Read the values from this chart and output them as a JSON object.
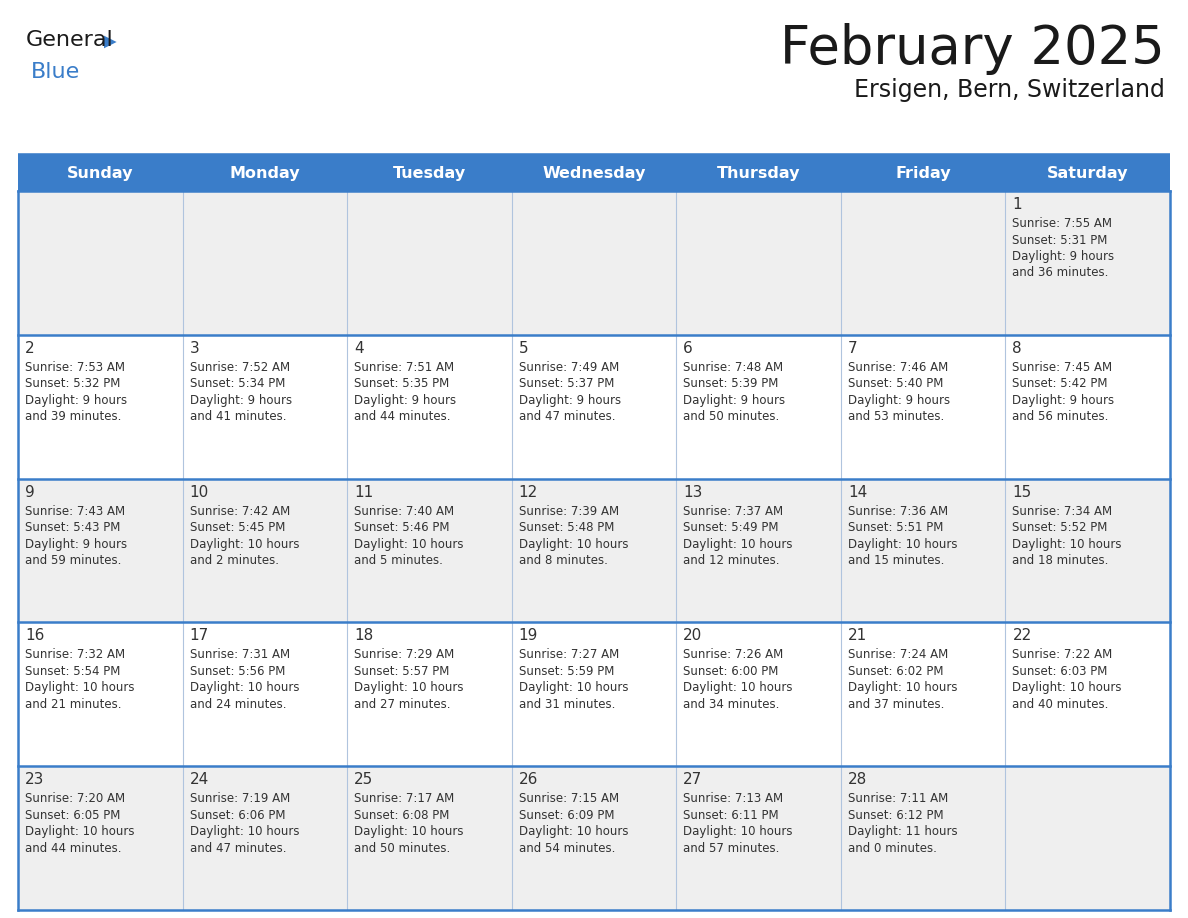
{
  "title": "February 2025",
  "subtitle": "Ersigen, Bern, Switzerland",
  "days_of_week": [
    "Sunday",
    "Monday",
    "Tuesday",
    "Wednesday",
    "Thursday",
    "Friday",
    "Saturday"
  ],
  "header_bg": "#3A7DC9",
  "header_text": "#FFFFFF",
  "cell_bg_odd": "#EFEFEF",
  "cell_bg_even": "#FFFFFF",
  "border_color": "#3A7DC9",
  "day_number_color": "#333333",
  "text_color": "#333333",
  "title_color": "#1a1a1a",
  "logo_general_color": "#1a1a1a",
  "logo_blue_color": "#3A7DC9",
  "calendar_data": [
    [
      null,
      null,
      null,
      null,
      null,
      null,
      {
        "day": "1",
        "sunrise": "7:55 AM",
        "sunset": "5:31 PM",
        "daylight_line1": "Daylight: 9 hours",
        "daylight_line2": "and 36 minutes."
      }
    ],
    [
      {
        "day": "2",
        "sunrise": "7:53 AM",
        "sunset": "5:32 PM",
        "daylight_line1": "Daylight: 9 hours",
        "daylight_line2": "and 39 minutes."
      },
      {
        "day": "3",
        "sunrise": "7:52 AM",
        "sunset": "5:34 PM",
        "daylight_line1": "Daylight: 9 hours",
        "daylight_line2": "and 41 minutes."
      },
      {
        "day": "4",
        "sunrise": "7:51 AM",
        "sunset": "5:35 PM",
        "daylight_line1": "Daylight: 9 hours",
        "daylight_line2": "and 44 minutes."
      },
      {
        "day": "5",
        "sunrise": "7:49 AM",
        "sunset": "5:37 PM",
        "daylight_line1": "Daylight: 9 hours",
        "daylight_line2": "and 47 minutes."
      },
      {
        "day": "6",
        "sunrise": "7:48 AM",
        "sunset": "5:39 PM",
        "daylight_line1": "Daylight: 9 hours",
        "daylight_line2": "and 50 minutes."
      },
      {
        "day": "7",
        "sunrise": "7:46 AM",
        "sunset": "5:40 PM",
        "daylight_line1": "Daylight: 9 hours",
        "daylight_line2": "and 53 minutes."
      },
      {
        "day": "8",
        "sunrise": "7:45 AM",
        "sunset": "5:42 PM",
        "daylight_line1": "Daylight: 9 hours",
        "daylight_line2": "and 56 minutes."
      }
    ],
    [
      {
        "day": "9",
        "sunrise": "7:43 AM",
        "sunset": "5:43 PM",
        "daylight_line1": "Daylight: 9 hours",
        "daylight_line2": "and 59 minutes."
      },
      {
        "day": "10",
        "sunrise": "7:42 AM",
        "sunset": "5:45 PM",
        "daylight_line1": "Daylight: 10 hours",
        "daylight_line2": "and 2 minutes."
      },
      {
        "day": "11",
        "sunrise": "7:40 AM",
        "sunset": "5:46 PM",
        "daylight_line1": "Daylight: 10 hours",
        "daylight_line2": "and 5 minutes."
      },
      {
        "day": "12",
        "sunrise": "7:39 AM",
        "sunset": "5:48 PM",
        "daylight_line1": "Daylight: 10 hours",
        "daylight_line2": "and 8 minutes."
      },
      {
        "day": "13",
        "sunrise": "7:37 AM",
        "sunset": "5:49 PM",
        "daylight_line1": "Daylight: 10 hours",
        "daylight_line2": "and 12 minutes."
      },
      {
        "day": "14",
        "sunrise": "7:36 AM",
        "sunset": "5:51 PM",
        "daylight_line1": "Daylight: 10 hours",
        "daylight_line2": "and 15 minutes."
      },
      {
        "day": "15",
        "sunrise": "7:34 AM",
        "sunset": "5:52 PM",
        "daylight_line1": "Daylight: 10 hours",
        "daylight_line2": "and 18 minutes."
      }
    ],
    [
      {
        "day": "16",
        "sunrise": "7:32 AM",
        "sunset": "5:54 PM",
        "daylight_line1": "Daylight: 10 hours",
        "daylight_line2": "and 21 minutes."
      },
      {
        "day": "17",
        "sunrise": "7:31 AM",
        "sunset": "5:56 PM",
        "daylight_line1": "Daylight: 10 hours",
        "daylight_line2": "and 24 minutes."
      },
      {
        "day": "18",
        "sunrise": "7:29 AM",
        "sunset": "5:57 PM",
        "daylight_line1": "Daylight: 10 hours",
        "daylight_line2": "and 27 minutes."
      },
      {
        "day": "19",
        "sunrise": "7:27 AM",
        "sunset": "5:59 PM",
        "daylight_line1": "Daylight: 10 hours",
        "daylight_line2": "and 31 minutes."
      },
      {
        "day": "20",
        "sunrise": "7:26 AM",
        "sunset": "6:00 PM",
        "daylight_line1": "Daylight: 10 hours",
        "daylight_line2": "and 34 minutes."
      },
      {
        "day": "21",
        "sunrise": "7:24 AM",
        "sunset": "6:02 PM",
        "daylight_line1": "Daylight: 10 hours",
        "daylight_line2": "and 37 minutes."
      },
      {
        "day": "22",
        "sunrise": "7:22 AM",
        "sunset": "6:03 PM",
        "daylight_line1": "Daylight: 10 hours",
        "daylight_line2": "and 40 minutes."
      }
    ],
    [
      {
        "day": "23",
        "sunrise": "7:20 AM",
        "sunset": "6:05 PM",
        "daylight_line1": "Daylight: 10 hours",
        "daylight_line2": "and 44 minutes."
      },
      {
        "day": "24",
        "sunrise": "7:19 AM",
        "sunset": "6:06 PM",
        "daylight_line1": "Daylight: 10 hours",
        "daylight_line2": "and 47 minutes."
      },
      {
        "day": "25",
        "sunrise": "7:17 AM",
        "sunset": "6:08 PM",
        "daylight_line1": "Daylight: 10 hours",
        "daylight_line2": "and 50 minutes."
      },
      {
        "day": "26",
        "sunrise": "7:15 AM",
        "sunset": "6:09 PM",
        "daylight_line1": "Daylight: 10 hours",
        "daylight_line2": "and 54 minutes."
      },
      {
        "day": "27",
        "sunrise": "7:13 AM",
        "sunset": "6:11 PM",
        "daylight_line1": "Daylight: 10 hours",
        "daylight_line2": "and 57 minutes."
      },
      {
        "day": "28",
        "sunrise": "7:11 AM",
        "sunset": "6:12 PM",
        "daylight_line1": "Daylight: 11 hours",
        "daylight_line2": "and 0 minutes."
      },
      null
    ]
  ]
}
